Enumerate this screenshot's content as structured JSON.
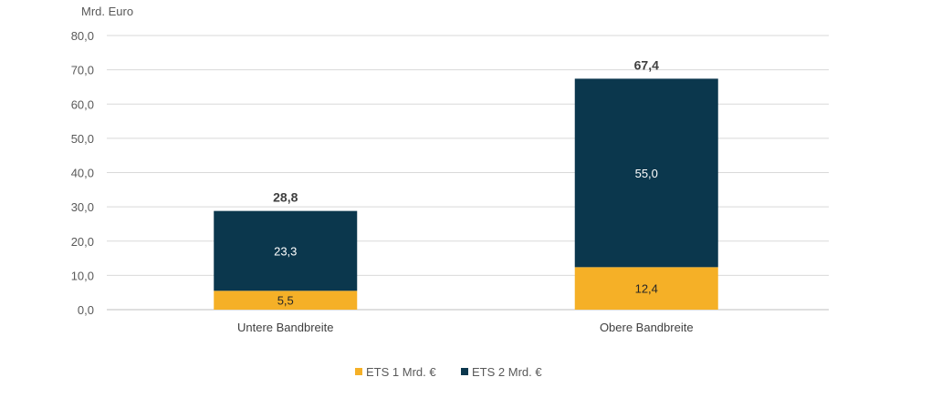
{
  "chart_data": {
    "type": "bar",
    "stacked": true,
    "ylabel": "Mrd. Euro",
    "ylim": [
      0,
      80
    ],
    "yticks": [
      "0,0",
      "10,0",
      "20,0",
      "30,0",
      "40,0",
      "50,0",
      "60,0",
      "70,0",
      "80,0"
    ],
    "ytick_values": [
      0,
      10,
      20,
      30,
      40,
      50,
      60,
      70,
      80
    ],
    "grid": true,
    "categories": [
      "Untere Bandbreite",
      "Obere Bandbreite"
    ],
    "series": [
      {
        "name": "ETS 1  Mrd. €",
        "color": "#F5B027",
        "values": [
          5.5,
          12.4
        ],
        "labels": [
          "5,5",
          "12,4"
        ]
      },
      {
        "name": "ETS 2 Mrd. €",
        "color": "#0B374D",
        "values": [
          23.3,
          55.0
        ],
        "labels": [
          "23,3",
          "55,0"
        ]
      }
    ],
    "totals": [
      28.8,
      67.4
    ],
    "total_labels": [
      "28,8",
      "67,4"
    ],
    "legend_position": "bottom"
  }
}
